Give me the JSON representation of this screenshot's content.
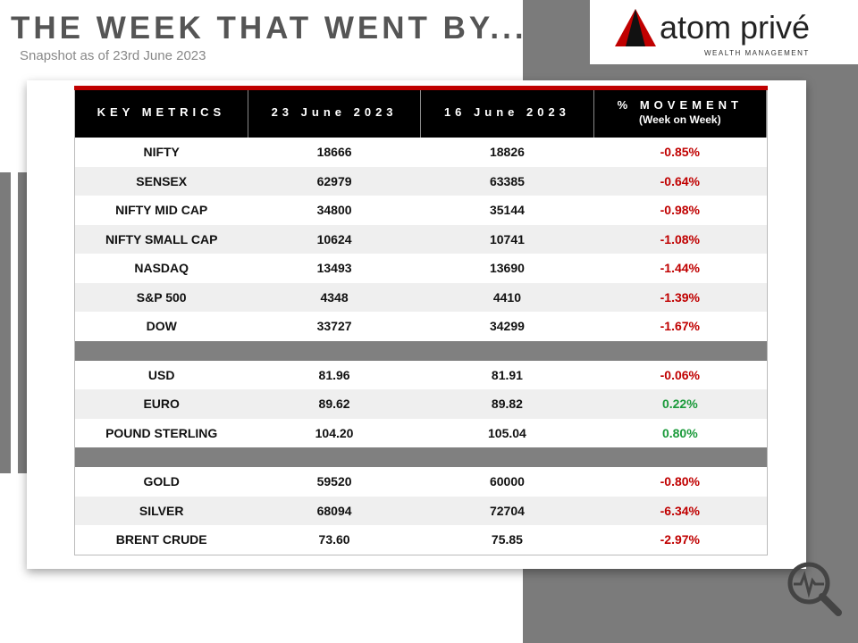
{
  "header": {
    "title": "THE WEEK THAT WENT BY...",
    "subtitle": "Snapshot as of 23rd June 2023"
  },
  "logo": {
    "name": "atom privé",
    "tagline": "WEALTH MANAGEMENT"
  },
  "table": {
    "columns": [
      "KEY METRICS",
      "23 June 2023",
      "16 June 2023",
      "% MOVEMENT"
    ],
    "column_note": "(Week on Week)",
    "groups": [
      [
        [
          "NIFTY",
          "18666",
          "18826",
          "-0.85%"
        ],
        [
          "SENSEX",
          "62979",
          "63385",
          "-0.64%"
        ],
        [
          "NIFTY MID CAP",
          "34800",
          "35144",
          "-0.98%"
        ],
        [
          "NIFTY SMALL CAP",
          "10624",
          "10741",
          "-1.08%"
        ],
        [
          "NASDAQ",
          "13493",
          "13690",
          "-1.44%"
        ],
        [
          "S&P 500",
          "4348",
          "4410",
          "-1.39%"
        ],
        [
          "DOW",
          "33727",
          "34299",
          "-1.67%"
        ]
      ],
      [
        [
          "USD",
          "81.96",
          "81.91",
          "-0.06%"
        ],
        [
          "EURO",
          "89.62",
          "89.82",
          "0.22%"
        ],
        [
          "POUND STERLING",
          "104.20",
          "105.04",
          "0.80%"
        ]
      ],
      [
        [
          "GOLD",
          "59520",
          "60000",
          "-0.80%"
        ],
        [
          "SILVER",
          "68094",
          "72704",
          "-6.34%"
        ],
        [
          "BRENT CRUDE",
          "73.60",
          "75.85",
          "-2.97%"
        ]
      ]
    ]
  }
}
